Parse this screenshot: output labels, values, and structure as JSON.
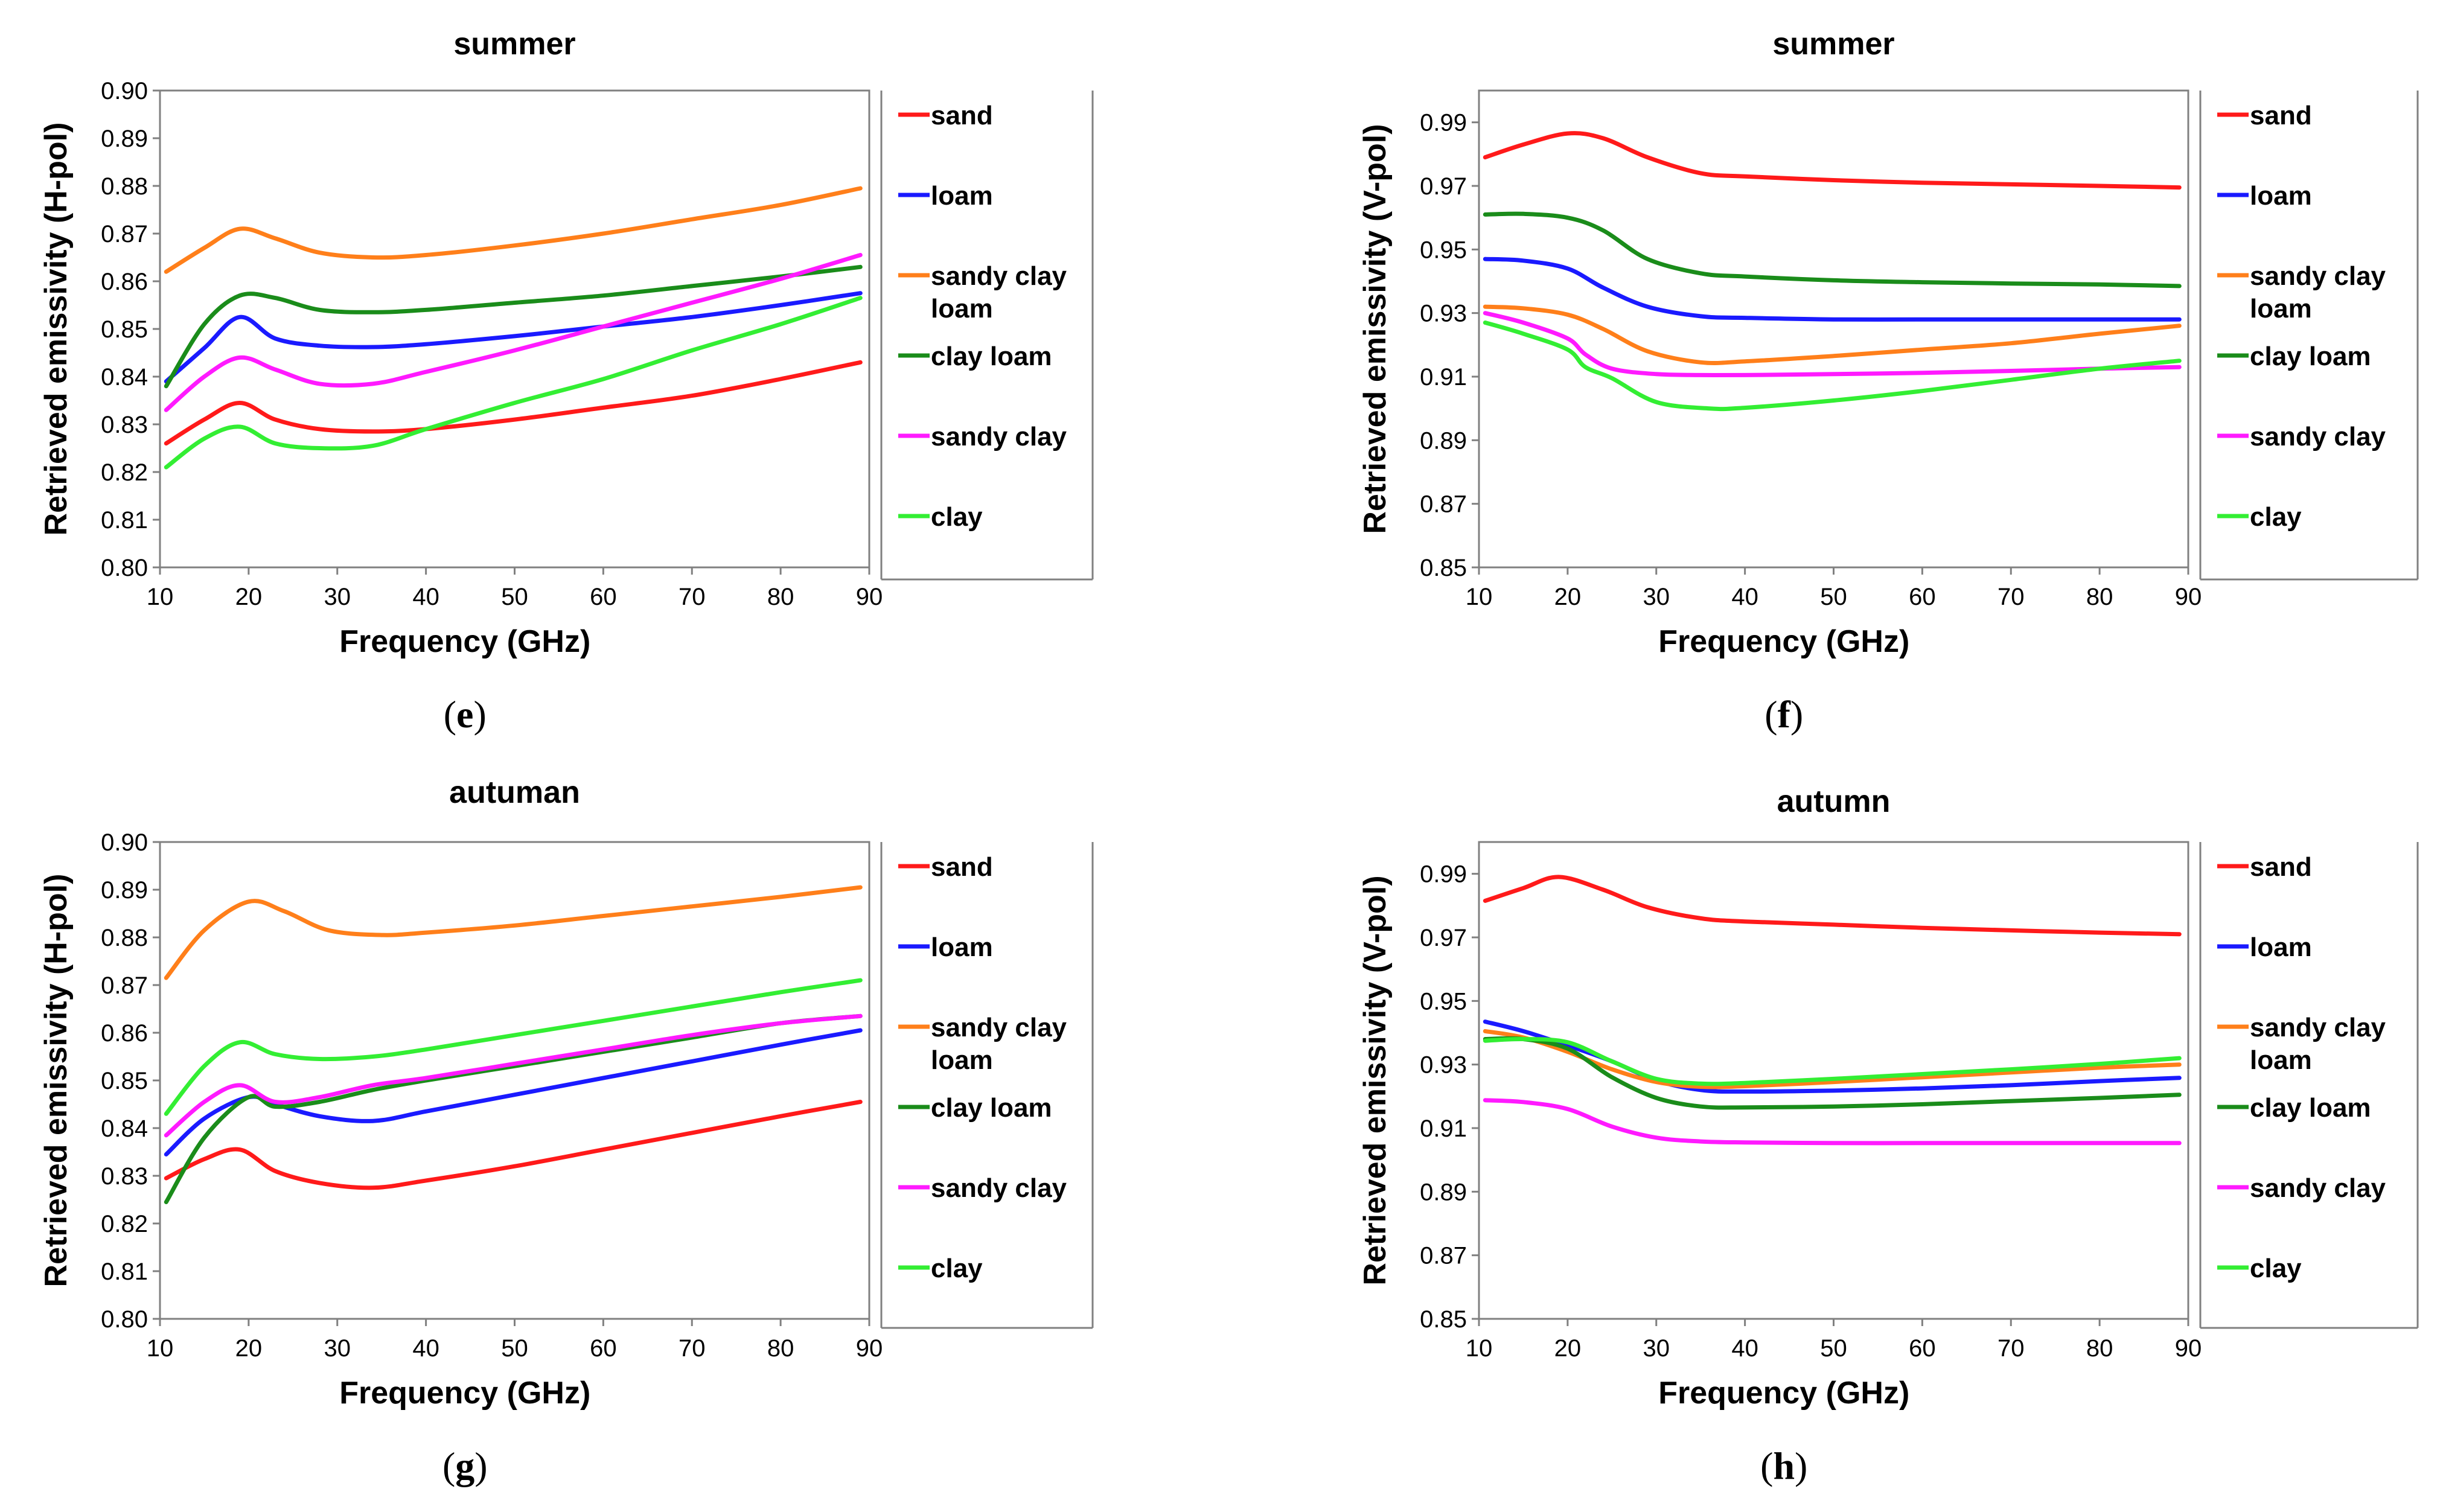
{
  "colors": {
    "sand": "#ff1a1a",
    "loam": "#1a1aff",
    "sandy_clay_loam": "#ff7f1a",
    "clay_loam": "#1a8c1a",
    "sandy_clay": "#ff1aff",
    "clay": "#33ee33"
  },
  "chart_data": [
    {
      "id": "e",
      "type": "line",
      "title": "summer",
      "caption": "(e)",
      "xlabel": "Frequency (GHz)",
      "ylabel": "Retrieved emissivity (H-pol)",
      "xlim": [
        10,
        90
      ],
      "ylim": [
        0.8,
        0.9
      ],
      "xticks": [
        10,
        20,
        30,
        40,
        50,
        60,
        70,
        80,
        90
      ],
      "yticks": [
        "0.80",
        "0.81",
        "0.82",
        "0.83",
        "0.84",
        "0.85",
        "0.86",
        "0.87",
        "0.88",
        "0.89",
        "0.90"
      ],
      "legend": [
        "sand",
        "loam",
        "sandy clay loam",
        "clay loam",
        "sandy clay",
        "clay"
      ],
      "series": [
        {
          "name": "sand",
          "color_key": "sand",
          "x": [
            10.7,
            15,
            19,
            23,
            28,
            34,
            40,
            50,
            60,
            70,
            80,
            89
          ],
          "y": [
            0.826,
            0.831,
            0.8345,
            0.831,
            0.829,
            0.8285,
            0.829,
            0.831,
            0.8335,
            0.836,
            0.8395,
            0.843
          ]
        },
        {
          "name": "loam",
          "color_key": "loam",
          "x": [
            10.7,
            15,
            19,
            23,
            28,
            34,
            40,
            50,
            60,
            70,
            80,
            89
          ],
          "y": [
            0.839,
            0.846,
            0.8525,
            0.848,
            0.8465,
            0.8462,
            0.8468,
            0.8485,
            0.8505,
            0.8525,
            0.855,
            0.8575
          ]
        },
        {
          "name": "sandy clay loam",
          "color_key": "sandy_clay_loam",
          "x": [
            10.7,
            15,
            19,
            23,
            28,
            34,
            40,
            50,
            60,
            70,
            80,
            89
          ],
          "y": [
            0.862,
            0.867,
            0.871,
            0.869,
            0.866,
            0.865,
            0.8655,
            0.8675,
            0.87,
            0.873,
            0.876,
            0.8795
          ]
        },
        {
          "name": "clay loam",
          "color_key": "clay_loam",
          "x": [
            10.7,
            15,
            19,
            23,
            28,
            34,
            40,
            50,
            60,
            70,
            80,
            89
          ],
          "y": [
            0.838,
            0.851,
            0.857,
            0.8565,
            0.854,
            0.8535,
            0.854,
            0.8555,
            0.857,
            0.859,
            0.861,
            0.863
          ]
        },
        {
          "name": "sandy clay",
          "color_key": "sandy_clay",
          "x": [
            10.7,
            15,
            19,
            23,
            28,
            34,
            40,
            50,
            60,
            70,
            80,
            89
          ],
          "y": [
            0.833,
            0.84,
            0.844,
            0.8415,
            0.8385,
            0.8385,
            0.841,
            0.8455,
            0.8505,
            0.8555,
            0.8605,
            0.8655
          ]
        },
        {
          "name": "clay",
          "color_key": "clay",
          "x": [
            10.7,
            15,
            19,
            23,
            28,
            34,
            40,
            50,
            60,
            70,
            80,
            89
          ],
          "y": [
            0.821,
            0.827,
            0.8295,
            0.826,
            0.825,
            0.8255,
            0.829,
            0.8345,
            0.8395,
            0.8455,
            0.851,
            0.8565
          ]
        }
      ]
    },
    {
      "id": "f",
      "type": "line",
      "title": "summer",
      "caption": "(f)",
      "xlabel": "Frequency (GHz)",
      "ylabel": "Retrieved emissivity (V-pol)",
      "xlim": [
        10,
        90
      ],
      "ylim": [
        0.85,
        1.0
      ],
      "xticks": [
        10,
        20,
        30,
        40,
        50,
        60,
        70,
        80,
        90
      ],
      "yticks": [
        "0.85",
        "0.87",
        "0.89",
        "0.91",
        "0.93",
        "0.95",
        "0.97",
        "0.99"
      ],
      "legend": [
        "sand",
        "loam",
        "sandy clay loam",
        "clay loam",
        "sandy clay",
        "clay"
      ],
      "series": [
        {
          "name": "sand",
          "color_key": "sand",
          "x": [
            10.7,
            15,
            20,
            24,
            29,
            35,
            40,
            50,
            60,
            70,
            80,
            89
          ],
          "y": [
            0.979,
            0.983,
            0.9865,
            0.985,
            0.979,
            0.974,
            0.973,
            0.9718,
            0.971,
            0.9705,
            0.97,
            0.9695
          ]
        },
        {
          "name": "loam",
          "color_key": "loam",
          "x": [
            10.7,
            15,
            20,
            24,
            29,
            35,
            40,
            50,
            60,
            70,
            80,
            89
          ],
          "y": [
            0.947,
            0.9465,
            0.944,
            0.938,
            0.932,
            0.929,
            0.9285,
            0.928,
            0.928,
            0.928,
            0.928,
            0.928
          ]
        },
        {
          "name": "sandy clay loam",
          "color_key": "sandy_clay_loam",
          "x": [
            10.7,
            15,
            20,
            24,
            29,
            35,
            40,
            50,
            60,
            70,
            80,
            89
          ],
          "y": [
            0.932,
            0.9315,
            0.9295,
            0.925,
            0.918,
            0.9145,
            0.9148,
            0.9165,
            0.9185,
            0.9205,
            0.9235,
            0.926
          ]
        },
        {
          "name": "clay loam",
          "color_key": "clay_loam",
          "x": [
            10.7,
            15,
            20,
            24,
            29,
            35,
            40,
            50,
            60,
            70,
            80,
            89
          ],
          "y": [
            0.961,
            0.9612,
            0.96,
            0.956,
            0.947,
            0.9425,
            0.9415,
            0.9403,
            0.9397,
            0.9393,
            0.939,
            0.9385
          ]
        },
        {
          "name": "sandy clay",
          "color_key": "sandy_clay",
          "x": [
            10.7,
            15,
            20,
            22,
            25,
            30,
            35,
            40,
            50,
            60,
            70,
            80,
            89
          ],
          "y": [
            0.93,
            0.927,
            0.922,
            0.917,
            0.9125,
            0.9108,
            0.9105,
            0.9105,
            0.9108,
            0.9112,
            0.9118,
            0.9125,
            0.913
          ]
        },
        {
          "name": "clay",
          "color_key": "clay",
          "x": [
            10.7,
            15,
            20,
            22,
            25,
            30,
            36,
            40,
            50,
            60,
            70,
            80,
            89
          ],
          "y": [
            0.927,
            0.9235,
            0.9185,
            0.913,
            0.9095,
            0.902,
            0.9,
            0.9002,
            0.9025,
            0.9055,
            0.909,
            0.9125,
            0.915
          ]
        }
      ]
    },
    {
      "id": "g",
      "type": "line",
      "title": "autuman",
      "caption": "(g)",
      "xlabel": "Frequency (GHz)",
      "ylabel": "Retrieved emissivity (H-pol)",
      "xlim": [
        10,
        90
      ],
      "ylim": [
        0.8,
        0.9
      ],
      "xticks": [
        10,
        20,
        30,
        40,
        50,
        60,
        70,
        80,
        90
      ],
      "yticks": [
        "0.80",
        "0.81",
        "0.82",
        "0.83",
        "0.84",
        "0.85",
        "0.86",
        "0.87",
        "0.88",
        "0.89",
        "0.90"
      ],
      "legend": [
        "sand",
        "loam",
        "sandy clay loam",
        "clay loam",
        "sandy clay",
        "clay"
      ],
      "series": [
        {
          "name": "sand",
          "color_key": "sand",
          "x": [
            10.7,
            15,
            19,
            23,
            28,
            34,
            40,
            50,
            60,
            70,
            80,
            89
          ],
          "y": [
            0.8295,
            0.8335,
            0.8355,
            0.831,
            0.8285,
            0.8275,
            0.829,
            0.832,
            0.8355,
            0.839,
            0.8425,
            0.8455
          ]
        },
        {
          "name": "loam",
          "color_key": "loam",
          "x": [
            10.7,
            15,
            20,
            23,
            28,
            34,
            40,
            50,
            60,
            70,
            80,
            89
          ],
          "y": [
            0.8345,
            0.842,
            0.8465,
            0.845,
            0.8425,
            0.8415,
            0.8435,
            0.847,
            0.8505,
            0.854,
            0.8575,
            0.8605
          ]
        },
        {
          "name": "sandy clay loam",
          "color_key": "sandy_clay_loam",
          "x": [
            10.7,
            15,
            20,
            24,
            29,
            35,
            40,
            50,
            60,
            70,
            80,
            89
          ],
          "y": [
            0.8715,
            0.8815,
            0.8875,
            0.8855,
            0.8815,
            0.8805,
            0.881,
            0.8825,
            0.8845,
            0.8865,
            0.8885,
            0.8905
          ]
        },
        {
          "name": "clay loam",
          "color_key": "clay_loam",
          "x": [
            10.7,
            15,
            20,
            23,
            28,
            34,
            40,
            50,
            60,
            70,
            80,
            89
          ],
          "y": [
            0.8245,
            0.838,
            0.8465,
            0.8445,
            0.8455,
            0.848,
            0.85,
            0.853,
            0.856,
            0.859,
            0.862,
            0.8635
          ]
        },
        {
          "name": "sandy clay",
          "color_key": "sandy_clay",
          "x": [
            10.7,
            15,
            19,
            23,
            28,
            34,
            40,
            50,
            60,
            70,
            80,
            89
          ],
          "y": [
            0.8385,
            0.8455,
            0.849,
            0.8455,
            0.8465,
            0.849,
            0.8505,
            0.8535,
            0.8565,
            0.8595,
            0.862,
            0.8635
          ]
        },
        {
          "name": "clay",
          "color_key": "clay",
          "x": [
            10.7,
            15,
            19,
            23,
            28,
            34,
            40,
            50,
            60,
            70,
            80,
            89
          ],
          "y": [
            0.843,
            0.853,
            0.858,
            0.8555,
            0.8545,
            0.855,
            0.8565,
            0.8595,
            0.8625,
            0.8655,
            0.8685,
            0.871
          ]
        }
      ]
    },
    {
      "id": "h",
      "type": "line",
      "title": "autumn",
      "caption": "(h)",
      "xlabel": "Frequency (GHz)",
      "ylabel": "Retrieved emissivity (V-pol)",
      "xlim": [
        10,
        90
      ],
      "ylim": [
        0.85,
        1.0
      ],
      "xticks": [
        10,
        20,
        30,
        40,
        50,
        60,
        70,
        80,
        90
      ],
      "yticks": [
        "0.85",
        "0.87",
        "0.89",
        "0.91",
        "0.93",
        "0.95",
        "0.97",
        "0.99"
      ],
      "legend": [
        "sand",
        "loam",
        "sandy clay loam",
        "clay loam",
        "sandy clay",
        "clay"
      ],
      "series": [
        {
          "name": "sand",
          "color_key": "sand",
          "x": [
            10.7,
            15,
            19,
            24,
            29,
            35,
            40,
            50,
            60,
            70,
            80,
            89
          ],
          "y": [
            0.9815,
            0.9855,
            0.989,
            0.985,
            0.9795,
            0.976,
            0.975,
            0.974,
            0.973,
            0.9722,
            0.9715,
            0.971
          ]
        },
        {
          "name": "loam",
          "color_key": "loam",
          "x": [
            10.7,
            15,
            20,
            25,
            30,
            35,
            40,
            50,
            60,
            70,
            80,
            89
          ],
          "y": [
            0.9435,
            0.9405,
            0.936,
            0.931,
            0.925,
            0.922,
            0.9215,
            0.9218,
            0.9225,
            0.9235,
            0.9248,
            0.9258
          ]
        },
        {
          "name": "sandy clay loam",
          "color_key": "sandy_clay_loam",
          "x": [
            10.7,
            15,
            20,
            25,
            30,
            35,
            40,
            50,
            60,
            70,
            80,
            89
          ],
          "y": [
            0.9405,
            0.9385,
            0.934,
            0.9285,
            0.9245,
            0.923,
            0.9232,
            0.9245,
            0.926,
            0.9275,
            0.929,
            0.93
          ]
        },
        {
          "name": "clay loam",
          "color_key": "clay_loam",
          "x": [
            10.7,
            15,
            20,
            25,
            30,
            35,
            40,
            50,
            60,
            70,
            80,
            89
          ],
          "y": [
            0.938,
            0.938,
            0.935,
            0.926,
            0.9195,
            0.9168,
            0.9165,
            0.9168,
            0.9175,
            0.9185,
            0.9195,
            0.9205
          ]
        },
        {
          "name": "sandy clay",
          "color_key": "sandy_clay",
          "x": [
            10.7,
            15,
            20,
            25,
            30,
            35,
            40,
            50,
            60,
            70,
            80,
            89
          ],
          "y": [
            0.9188,
            0.9182,
            0.916,
            0.9105,
            0.907,
            0.9058,
            0.9055,
            0.9053,
            0.9053,
            0.9053,
            0.9053,
            0.9053
          ]
        },
        {
          "name": "clay",
          "color_key": "clay",
          "x": [
            10.7,
            15,
            20,
            25,
            30,
            35,
            40,
            50,
            60,
            70,
            80,
            89
          ],
          "y": [
            0.9375,
            0.938,
            0.937,
            0.931,
            0.9255,
            0.924,
            0.9242,
            0.9255,
            0.927,
            0.9285,
            0.9302,
            0.932
          ]
        }
      ]
    }
  ]
}
